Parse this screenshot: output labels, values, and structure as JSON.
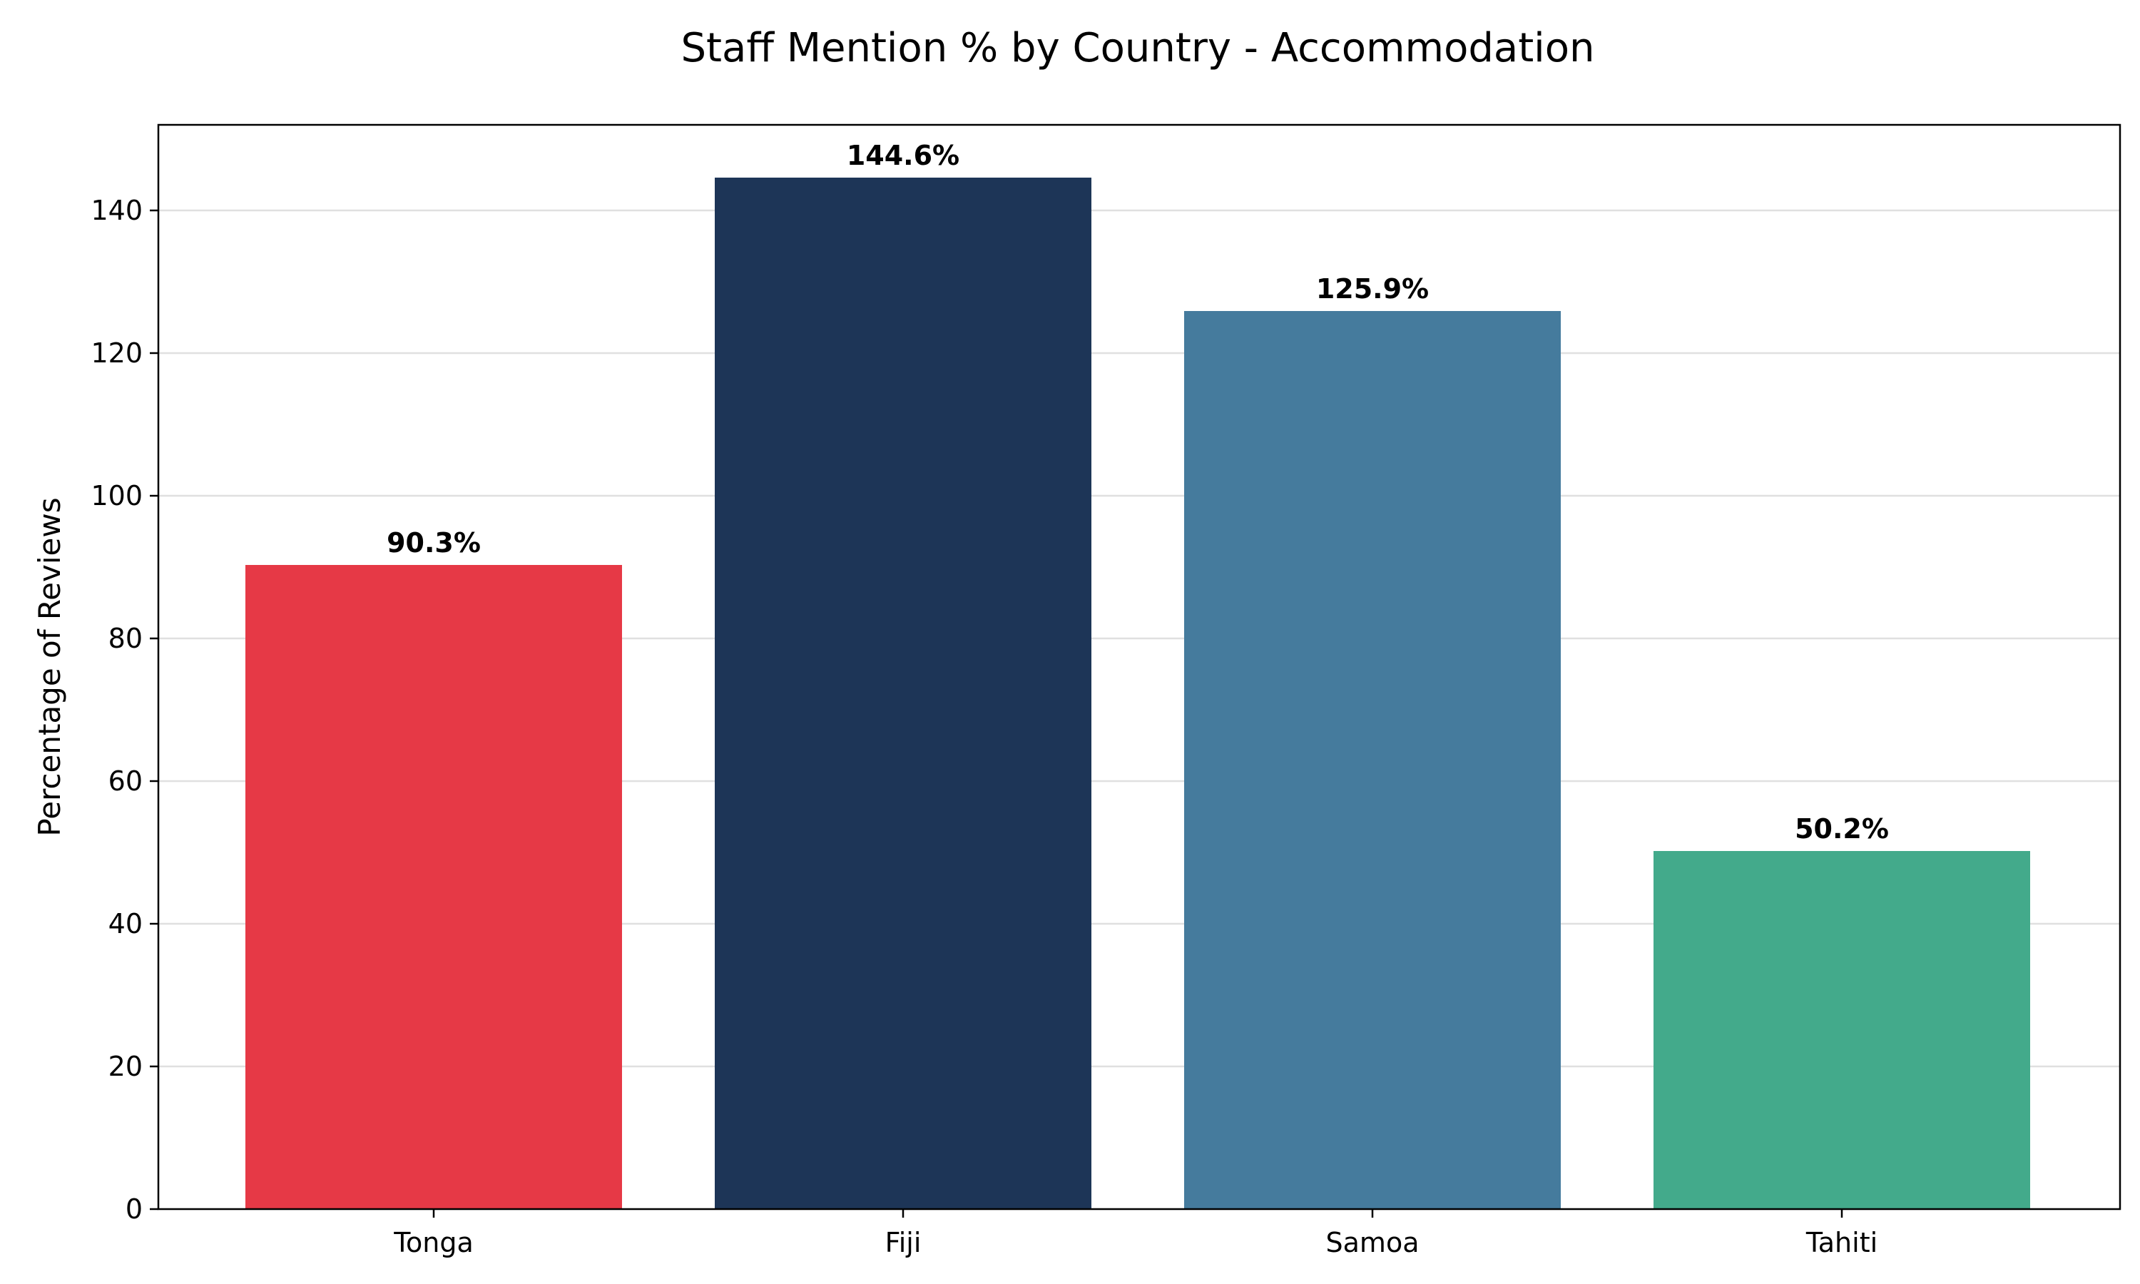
{
  "chart_data": {
    "type": "bar",
    "title": "Staff Mention % by Country - Accommodation",
    "xlabel": "",
    "ylabel": "Percentage of Reviews",
    "categories": [
      "Tonga",
      "Fiji",
      "Samoa",
      "Tahiti"
    ],
    "values": [
      90.3,
      144.6,
      125.9,
      50.2
    ],
    "value_labels": [
      "90.3%",
      "144.6%",
      "125.9%",
      "50.2%"
    ],
    "colors": [
      "#e63946",
      "#1d3557",
      "#457b9d",
      "#43aa8b"
    ],
    "ylim": [
      0,
      152
    ],
    "yticks": [
      0,
      20,
      40,
      60,
      80,
      100,
      120,
      140
    ],
    "grid": "horizontal",
    "legend": "none"
  }
}
